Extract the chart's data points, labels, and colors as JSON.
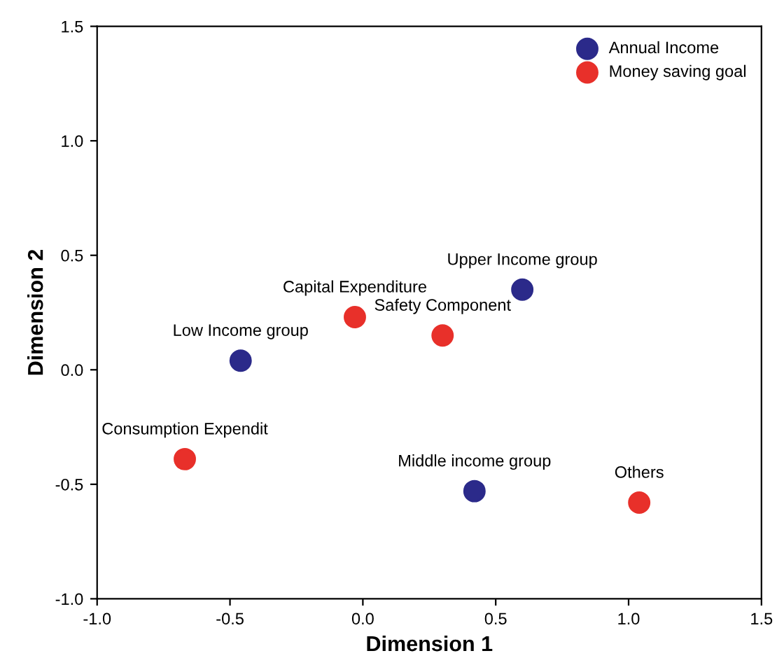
{
  "chart_data": {
    "type": "scatter",
    "xlabel": "Dimension 1",
    "ylabel": "Dimension 2",
    "series": [
      {
        "name": "Annual Income",
        "color": "#2b2a8a",
        "x": [
          -0.46,
          0.6,
          0.42
        ],
        "values": [
          0.04,
          0.35,
          -0.53
        ]
      },
      {
        "name": "Money saving goal",
        "color": "#e8302a",
        "x": [
          -0.03,
          0.3,
          -0.67,
          1.04
        ],
        "values": [
          0.23,
          0.15,
          -0.39,
          -0.58
        ]
      }
    ],
    "annotations": [
      {
        "text": "Low Income group",
        "x": -0.46,
        "y": 0.04
      },
      {
        "text": "Upper Income group",
        "x": 0.6,
        "y": 0.35
      },
      {
        "text": "Middle income group",
        "x": 0.42,
        "y": -0.53
      },
      {
        "text": "Capital Expenditure",
        "x": -0.03,
        "y": 0.23
      },
      {
        "text": "Safety Component",
        "x": 0.3,
        "y": 0.15
      },
      {
        "text": "Consumption Expendit",
        "x": -0.67,
        "y": -0.39
      },
      {
        "text": "Others",
        "x": 1.04,
        "y": -0.58
      }
    ],
    "xlim": [
      -1.0,
      1.5
    ],
    "ylim": [
      -1.0,
      1.5
    ],
    "xticks": [
      {
        "value": -1.0,
        "label": "-1.0"
      },
      {
        "value": -0.5,
        "label": "-0.5"
      },
      {
        "value": 0.0,
        "label": "0.0"
      },
      {
        "value": 0.5,
        "label": "0.5"
      },
      {
        "value": 1.0,
        "label": "1.0"
      },
      {
        "value": 1.5,
        "label": "1.5"
      }
    ],
    "yticks": [
      {
        "value": -1.0,
        "label": "-1.0"
      },
      {
        "value": -0.5,
        "label": "-0.5"
      },
      {
        "value": 0.0,
        "label": "0.0"
      },
      {
        "value": 0.5,
        "label": "0.5"
      },
      {
        "value": 1.0,
        "label": "1.0"
      },
      {
        "value": 1.5,
        "label": "1.5"
      }
    ],
    "grid": false,
    "legend": "top right",
    "marker": "circle"
  }
}
